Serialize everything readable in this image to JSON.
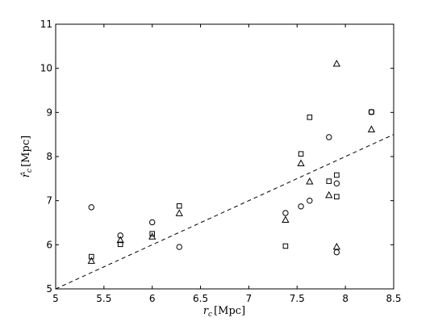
{
  "chart_data": {
    "type": "scatter",
    "xlabel_main": "r",
    "xlabel_sub": "c",
    "xlabel_unit": "[Mpc]",
    "ylabel_main": "r̂",
    "ylabel_sub": "c",
    "ylabel_unit": "[Mpc]",
    "xlim": [
      5,
      8.5
    ],
    "ylim": [
      5,
      11
    ],
    "xticks": [
      5,
      5.5,
      6,
      6.5,
      7,
      7.5,
      8,
      8.5
    ],
    "xtick_labels": [
      "5",
      "5.5",
      "6",
      "6.5",
      "7",
      "7.5",
      "8",
      "8.5"
    ],
    "yticks": [
      5,
      6,
      7,
      8,
      9,
      10,
      11
    ],
    "ytick_labels": [
      "5",
      "6",
      "7",
      "8",
      "9",
      "10",
      "11"
    ],
    "grid": false,
    "reference_line": {
      "style": "dashed",
      "x": [
        5,
        8.5
      ],
      "y": [
        5,
        8.5
      ]
    },
    "series": [
      {
        "marker": "circle",
        "x": [
          5.37,
          5.67,
          6.0,
          6.28,
          7.38,
          7.54,
          7.63,
          7.83,
          7.91,
          7.91,
          8.27
        ],
        "y": [
          6.85,
          6.21,
          6.51,
          5.95,
          6.72,
          6.87,
          7.0,
          8.44,
          7.39,
          5.83,
          9.01
        ]
      },
      {
        "marker": "square",
        "x": [
          5.37,
          5.67,
          6.0,
          6.28,
          7.38,
          7.54,
          7.63,
          7.83,
          7.91,
          7.91,
          8.27
        ],
        "y": [
          5.73,
          6.01,
          6.25,
          6.88,
          5.97,
          8.06,
          8.89,
          7.44,
          7.58,
          7.09,
          9.01
        ]
      },
      {
        "marker": "triangle",
        "x": [
          5.37,
          5.67,
          6.0,
          6.28,
          7.38,
          7.54,
          7.63,
          7.83,
          7.91,
          7.91,
          8.27
        ],
        "y": [
          5.63,
          6.1,
          6.18,
          6.71,
          6.56,
          7.84,
          7.43,
          7.12,
          10.1,
          5.95,
          8.61
        ]
      }
    ]
  }
}
